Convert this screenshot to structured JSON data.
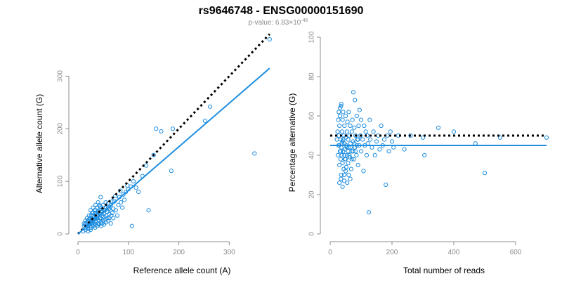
{
  "title": "rs9646748 - ENSG00000151690",
  "subtitle": {
    "prefix": "p-value: 6.83×10",
    "exponent": "-46"
  },
  "colors": {
    "points": "#1f8ee0",
    "fit": "#1f8ee0",
    "reference": "#000000",
    "axis": "#8c8c8c"
  },
  "chart_data": [
    {
      "type": "scatter",
      "xlabel": "Reference allele count (A)",
      "ylabel": "Alternative allele count (G)",
      "xlim": [
        0,
        390
      ],
      "ylim": [
        0,
        370
      ],
      "xticks": [
        0,
        100,
        200,
        300
      ],
      "yticks": [
        0,
        100,
        200,
        300
      ],
      "points": [
        [
          12,
          15
        ],
        [
          14,
          18
        ],
        [
          15,
          12
        ],
        [
          16,
          20
        ],
        [
          18,
          14
        ],
        [
          18,
          22
        ],
        [
          20,
          10
        ],
        [
          20,
          25
        ],
        [
          22,
          18
        ],
        [
          22,
          28
        ],
        [
          24,
          15
        ],
        [
          24,
          30
        ],
        [
          25,
          20
        ],
        [
          26,
          12
        ],
        [
          26,
          35
        ],
        [
          28,
          22
        ],
        [
          28,
          18
        ],
        [
          30,
          25
        ],
        [
          30,
          40
        ],
        [
          30,
          15
        ],
        [
          32,
          28
        ],
        [
          32,
          20
        ],
        [
          33,
          45
        ],
        [
          34,
          12
        ],
        [
          34,
          30
        ],
        [
          35,
          18
        ],
        [
          35,
          25
        ],
        [
          36,
          38
        ],
        [
          36,
          22
        ],
        [
          38,
          15
        ],
        [
          38,
          30
        ],
        [
          38,
          50
        ],
        [
          40,
          20
        ],
        [
          40,
          35
        ],
        [
          40,
          42
        ],
        [
          42,
          25
        ],
        [
          42,
          18
        ],
        [
          42,
          55
        ],
        [
          44,
          30
        ],
        [
          44,
          38
        ],
        [
          45,
          22
        ],
        [
          45,
          48
        ],
        [
          46,
          15
        ],
        [
          46,
          28
        ],
        [
          48,
          35
        ],
        [
          48,
          20
        ],
        [
          48,
          42
        ],
        [
          50,
          25
        ],
        [
          50,
          32
        ],
        [
          50,
          55
        ],
        [
          52,
          18
        ],
        [
          52,
          38
        ],
        [
          54,
          28
        ],
        [
          54,
          45
        ],
        [
          55,
          22
        ],
        [
          55,
          60
        ],
        [
          56,
          35
        ],
        [
          58,
          30
        ],
        [
          58,
          42
        ],
        [
          60,
          25
        ],
        [
          60,
          50
        ],
        [
          62,
          38
        ],
        [
          62,
          30
        ],
        [
          64,
          45
        ],
        [
          65,
          20
        ],
        [
          65,
          55
        ],
        [
          66,
          35
        ],
        [
          68,
          40
        ],
        [
          70,
          30
        ],
        [
          70,
          48
        ],
        [
          72,
          62
        ],
        [
          75,
          45
        ],
        [
          78,
          35
        ],
        [
          80,
          55
        ],
        [
          82,
          70
        ],
        [
          85,
          60
        ],
        [
          88,
          50
        ],
        [
          90,
          75
        ],
        [
          92,
          65
        ],
        [
          95,
          80
        ],
        [
          98,
          92
        ],
        [
          100,
          85
        ],
        [
          105,
          90
        ],
        [
          110,
          100
        ],
        [
          115,
          88
        ],
        [
          120,
          80
        ],
        [
          128,
          110
        ],
        [
          135,
          130
        ],
        [
          140,
          45
        ],
        [
          150,
          150
        ],
        [
          155,
          200
        ],
        [
          165,
          195
        ],
        [
          185,
          120
        ],
        [
          188,
          200
        ],
        [
          252,
          215
        ],
        [
          262,
          242
        ],
        [
          350,
          153
        ],
        [
          380,
          370
        ],
        [
          107,
          15
        ],
        [
          10,
          5
        ],
        [
          15,
          8
        ],
        [
          20,
          5
        ],
        [
          25,
          8
        ],
        [
          18,
          30
        ],
        [
          22,
          35
        ],
        [
          28,
          40
        ],
        [
          30,
          50
        ],
        [
          35,
          55
        ],
        [
          25,
          45
        ],
        [
          40,
          60
        ],
        [
          45,
          70
        ],
        [
          15,
          25
        ],
        [
          12,
          20
        ],
        [
          20,
          15
        ],
        [
          24,
          22
        ],
        [
          26,
          26
        ],
        [
          28,
          28
        ],
        [
          32,
          32
        ],
        [
          36,
          30
        ],
        [
          38,
          36
        ],
        [
          42,
          40
        ],
        [
          46,
          44
        ],
        [
          50,
          46
        ],
        [
          34,
          40
        ],
        [
          44,
          52
        ],
        [
          56,
          50
        ],
        [
          60,
          58
        ],
        [
          68,
          62
        ],
        [
          74,
          72
        ],
        [
          84,
          82
        ],
        [
          62,
          48
        ],
        [
          30,
          35
        ],
        [
          35,
          45
        ]
      ],
      "fit_line": {
        "x": [
          0,
          380
        ],
        "y": [
          0,
          315
        ]
      },
      "reference_line": {
        "x": [
          0,
          380
        ],
        "y": [
          0,
          380
        ]
      }
    },
    {
      "type": "scatter",
      "xlabel": "Total number of reads",
      "ylabel": "Percentage alternative (G)",
      "xlim": [
        0,
        700
      ],
      "ylim": [
        0,
        100
      ],
      "xticks": [
        0,
        200,
        400,
        600
      ],
      "yticks": [
        0,
        20,
        40,
        60,
        80,
        100
      ],
      "points": [
        [
          25,
          40
        ],
        [
          27,
          45
        ],
        [
          28,
          50
        ],
        [
          30,
          35
        ],
        [
          30,
          55
        ],
        [
          32,
          42
        ],
        [
          32,
          60
        ],
        [
          34,
          38
        ],
        [
          34,
          48
        ],
        [
          35,
          65
        ],
        [
          36,
          30
        ],
        [
          36,
          44
        ],
        [
          38,
          52
        ],
        [
          38,
          40
        ],
        [
          40,
          58
        ],
        [
          40,
          36
        ],
        [
          40,
          47
        ],
        [
          42,
          42
        ],
        [
          42,
          62
        ],
        [
          44,
          33
        ],
        [
          44,
          50
        ],
        [
          45,
          27
        ],
        [
          46,
          46
        ],
        [
          46,
          55
        ],
        [
          48,
          38
        ],
        [
          48,
          43
        ],
        [
          50,
          60
        ],
        [
          50,
          49
        ],
        [
          52,
          34
        ],
        [
          52,
          45
        ],
        [
          54,
          52
        ],
        [
          55,
          40
        ],
        [
          56,
          57
        ],
        [
          58,
          48
        ],
        [
          58,
          36
        ],
        [
          60,
          44
        ],
        [
          60,
          62
        ],
        [
          62,
          50
        ],
        [
          64,
          39
        ],
        [
          65,
          55
        ],
        [
          66,
          46
        ],
        [
          68,
          33
        ],
        [
          70,
          52
        ],
        [
          70,
          42
        ],
        [
          72,
          58
        ],
        [
          74,
          47
        ],
        [
          75,
          72
        ],
        [
          76,
          38
        ],
        [
          78,
          54
        ],
        [
          80,
          44
        ],
        [
          80,
          68
        ],
        [
          82,
          50
        ],
        [
          85,
          40
        ],
        [
          86,
          60
        ],
        [
          88,
          48
        ],
        [
          90,
          35
        ],
        [
          92,
          55
        ],
        [
          94,
          45
        ],
        [
          95,
          63
        ],
        [
          98,
          50
        ],
        [
          100,
          42
        ],
        [
          100,
          58
        ],
        [
          105,
          48
        ],
        [
          108,
          32
        ],
        [
          110,
          55
        ],
        [
          112,
          45
        ],
        [
          115,
          52
        ],
        [
          118,
          40
        ],
        [
          120,
          50
        ],
        [
          122,
          46
        ],
        [
          125,
          11
        ],
        [
          128,
          58
        ],
        [
          130,
          48
        ],
        [
          135,
          44
        ],
        [
          140,
          52
        ],
        [
          145,
          40
        ],
        [
          150,
          47
        ],
        [
          155,
          50
        ],
        [
          160,
          43
        ],
        [
          165,
          55
        ],
        [
          170,
          45
        ],
        [
          175,
          48
        ],
        [
          180,
          25
        ],
        [
          185,
          50
        ],
        [
          190,
          42
        ],
        [
          195,
          52
        ],
        [
          200,
          47
        ],
        [
          205,
          44
        ],
        [
          220,
          50
        ],
        [
          240,
          43
        ],
        [
          260,
          50
        ],
        [
          300,
          49
        ],
        [
          305,
          40
        ],
        [
          350,
          54
        ],
        [
          400,
          52
        ],
        [
          470,
          46
        ],
        [
          500,
          31
        ],
        [
          550,
          49
        ],
        [
          700,
          49
        ],
        [
          30,
          26
        ],
        [
          35,
          28
        ],
        [
          40,
          24
        ],
        [
          45,
          30
        ],
        [
          50,
          32
        ],
        [
          55,
          26
        ],
        [
          60,
          30
        ],
        [
          65,
          28
        ],
        [
          28,
          62
        ],
        [
          32,
          64
        ],
        [
          36,
          66
        ],
        [
          26,
          58
        ],
        [
          24,
          52
        ],
        [
          22,
          48
        ],
        [
          30,
          45
        ],
        [
          34,
          42
        ],
        [
          38,
          46
        ],
        [
          42,
          48
        ],
        [
          46,
          40
        ],
        [
          50,
          38
        ],
        [
          54,
          44
        ],
        [
          58,
          42
        ],
        [
          62,
          40
        ],
        [
          66,
          44
        ],
        [
          70,
          38
        ],
        [
          74,
          42
        ],
        [
          78,
          46
        ],
        [
          82,
          42
        ],
        [
          86,
          45
        ],
        [
          90,
          48
        ]
      ],
      "fit_line": {
        "x": [
          0,
          700
        ],
        "y": [
          45,
          45
        ]
      },
      "reference_line": {
        "x": [
          0,
          700
        ],
        "y": [
          50,
          50
        ]
      }
    }
  ]
}
